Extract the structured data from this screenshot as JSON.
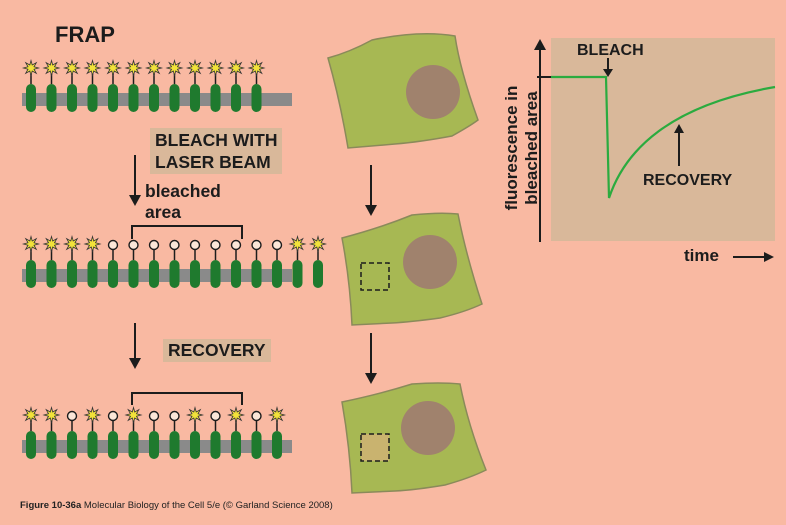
{
  "title": "FRAP",
  "labels": {
    "bleach_with_laser_line1": "BLEACH WITH",
    "bleach_with_laser_line2": "LASER BEAM",
    "bleached_line1": "bleached",
    "bleached_line2": "area",
    "recovery_step": "RECOVERY"
  },
  "graph": {
    "bleach_label": "BLEACH",
    "recovery_label": "RECOVERY",
    "ylabel_line1": "fluorescence in",
    "ylabel_line2": "bleached area",
    "xlabel": "time"
  },
  "caption": {
    "figure": "Figure 10-36a",
    "rest": "Molecular Biology of the Cell 5/e (© Garland Science 2008)"
  },
  "colors": {
    "background": "#f9b9a2",
    "membrane": "#8a8a8a",
    "protein": "#1f7a2e",
    "fluorophore": "#f2e23a",
    "cell": "#a7b853",
    "nucleus": "#a0826d",
    "graph_bg": "#d9b89a",
    "curve": "#2bab3f"
  },
  "rows": [
    {
      "pattern": "FFFFFFFFFFFF"
    },
    {
      "pattern": "FFFFBBBBBBBBBFF"
    },
    {
      "pattern": "FFBFBFBBFBFBF"
    }
  ]
}
